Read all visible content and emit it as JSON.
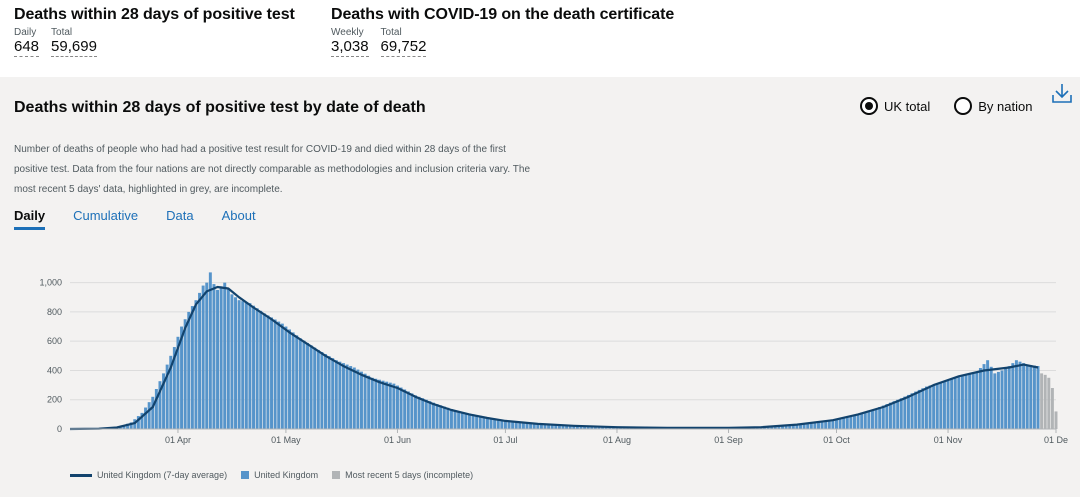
{
  "headlines": [
    {
      "title": "Deaths within 28 days of positive test",
      "metrics": [
        {
          "caption": "Daily",
          "value": "648"
        },
        {
          "caption": "Total",
          "value": "59,699"
        }
      ]
    },
    {
      "title": "Deaths with COVID-19 on the death certificate",
      "metrics": [
        {
          "caption": "Weekly",
          "value": "3,038"
        },
        {
          "caption": "Total",
          "value": "69,752"
        }
      ]
    }
  ],
  "card": {
    "title": "Deaths within 28 days of positive test by date of death",
    "description": "Number of deaths of people who had had a positive test result for COVID-19 and died within 28 days of the first positive test. Data from the four nations are not directly comparable as methodologies and inclusion criteria vary. The most recent 5 days' data, highlighted in grey, are incomplete.",
    "radio_options": [
      {
        "label": "UK total",
        "selected": true
      },
      {
        "label": "By nation",
        "selected": false
      }
    ],
    "tabs": [
      {
        "label": "Daily",
        "active": true
      },
      {
        "label": "Cumulative",
        "active": false
      },
      {
        "label": "Data",
        "active": false
      },
      {
        "label": "About",
        "active": false
      }
    ],
    "download_icon": "download-icon"
  },
  "colors": {
    "bar": "#5694ca",
    "incomplete": "#b1b4b6",
    "average_line": "#12436d",
    "tab_link": "#1d70b8"
  },
  "chart_data": {
    "type": "bar",
    "x_start": "2020-03-02",
    "x_end": "2020-12-01",
    "ylim": [
      0,
      1100
    ],
    "y_ticks": [
      0,
      200,
      400,
      600,
      800,
      1000
    ],
    "y_tick_labels": [
      "0",
      "200",
      "400",
      "600",
      "800",
      "1,000"
    ],
    "x_tick_labels": [
      "01 Apr",
      "01 May",
      "01 Jun",
      "01 Jul",
      "01 Aug",
      "01 Sep",
      "01 Oct",
      "01 Nov",
      "01 De"
    ],
    "x_tick_dates": [
      "2020-04-01",
      "2020-05-01",
      "2020-06-01",
      "2020-07-01",
      "2020-08-01",
      "2020-09-01",
      "2020-10-01",
      "2020-11-01",
      "2020-12-01"
    ],
    "grid": true,
    "legend_position": "bottom",
    "series": [
      {
        "name": "United Kingdom (7-day average)",
        "kind": "line",
        "points": [
          [
            "2020-03-02",
            0
          ],
          [
            "2020-03-10",
            2
          ],
          [
            "2020-03-15",
            10
          ],
          [
            "2020-03-20",
            40
          ],
          [
            "2020-03-25",
            150
          ],
          [
            "2020-03-30",
            420
          ],
          [
            "2020-04-03",
            690
          ],
          [
            "2020-04-06",
            850
          ],
          [
            "2020-04-09",
            940
          ],
          [
            "2020-04-12",
            970
          ],
          [
            "2020-04-15",
            960
          ],
          [
            "2020-04-18",
            900
          ],
          [
            "2020-04-22",
            830
          ],
          [
            "2020-04-27",
            750
          ],
          [
            "2020-05-02",
            660
          ],
          [
            "2020-05-07",
            580
          ],
          [
            "2020-05-12",
            500
          ],
          [
            "2020-05-17",
            430
          ],
          [
            "2020-05-22",
            370
          ],
          [
            "2020-05-27",
            320
          ],
          [
            "2020-06-01",
            280
          ],
          [
            "2020-06-06",
            220
          ],
          [
            "2020-06-11",
            170
          ],
          [
            "2020-06-16",
            130
          ],
          [
            "2020-06-21",
            100
          ],
          [
            "2020-06-26",
            75
          ],
          [
            "2020-07-01",
            55
          ],
          [
            "2020-07-10",
            35
          ],
          [
            "2020-07-20",
            22
          ],
          [
            "2020-08-01",
            12
          ],
          [
            "2020-08-15",
            8
          ],
          [
            "2020-09-01",
            8
          ],
          [
            "2020-09-10",
            12
          ],
          [
            "2020-09-20",
            30
          ],
          [
            "2020-09-30",
            60
          ],
          [
            "2020-10-07",
            100
          ],
          [
            "2020-10-14",
            150
          ],
          [
            "2020-10-21",
            220
          ],
          [
            "2020-10-28",
            300
          ],
          [
            "2020-11-04",
            360
          ],
          [
            "2020-11-11",
            400
          ],
          [
            "2020-11-18",
            420
          ],
          [
            "2020-11-22",
            440
          ],
          [
            "2020-11-26",
            420
          ]
        ]
      },
      {
        "name": "United Kingdom",
        "kind": "bar",
        "points": [
          [
            "2020-03-02",
            0
          ],
          [
            "2020-03-12",
            3
          ],
          [
            "2020-03-16",
            18
          ],
          [
            "2020-03-19",
            45
          ],
          [
            "2020-03-22",
            110
          ],
          [
            "2020-03-25",
            220
          ],
          [
            "2020-03-28",
            380
          ],
          [
            "2020-03-31",
            560
          ],
          [
            "2020-04-02",
            700
          ],
          [
            "2020-04-04",
            800
          ],
          [
            "2020-04-06",
            880
          ],
          [
            "2020-04-08",
            980
          ],
          [
            "2020-04-09",
            1000
          ],
          [
            "2020-04-10",
            1070
          ],
          [
            "2020-04-11",
            990
          ],
          [
            "2020-04-12",
            950
          ],
          [
            "2020-04-14",
            1000
          ],
          [
            "2020-04-16",
            920
          ],
          [
            "2020-04-18",
            880
          ],
          [
            "2020-04-21",
            860
          ],
          [
            "2020-04-25",
            790
          ],
          [
            "2020-04-30",
            720
          ],
          [
            "2020-05-05",
            620
          ],
          [
            "2020-05-10",
            540
          ],
          [
            "2020-05-15",
            470
          ],
          [
            "2020-05-20",
            420
          ],
          [
            "2020-05-25",
            350
          ],
          [
            "2020-05-31",
            310
          ],
          [
            "2020-06-06",
            230
          ],
          [
            "2020-06-12",
            170
          ],
          [
            "2020-06-18",
            120
          ],
          [
            "2020-06-24",
            90
          ],
          [
            "2020-06-30",
            60
          ],
          [
            "2020-07-08",
            40
          ],
          [
            "2020-07-20",
            25
          ],
          [
            "2020-08-01",
            14
          ],
          [
            "2020-08-20",
            9
          ],
          [
            "2020-09-05",
            8
          ],
          [
            "2020-09-15",
            15
          ],
          [
            "2020-09-22",
            40
          ],
          [
            "2020-09-28",
            55
          ],
          [
            "2020-10-05",
            90
          ],
          [
            "2020-10-12",
            140
          ],
          [
            "2020-10-19",
            210
          ],
          [
            "2020-10-26",
            290
          ],
          [
            "2020-11-02",
            340
          ],
          [
            "2020-11-09",
            390
          ],
          [
            "2020-11-12",
            470
          ],
          [
            "2020-11-14",
            380
          ],
          [
            "2020-11-17",
            410
          ],
          [
            "2020-11-20",
            470
          ],
          [
            "2020-11-23",
            440
          ],
          [
            "2020-11-26",
            430
          ]
        ]
      },
      {
        "name": "Most recent 5 days (incomplete)",
        "kind": "bar",
        "points": [
          [
            "2020-11-27",
            380
          ],
          [
            "2020-11-28",
            370
          ],
          [
            "2020-11-29",
            350
          ],
          [
            "2020-11-30",
            280
          ],
          [
            "2020-12-01",
            120
          ]
        ]
      }
    ]
  }
}
